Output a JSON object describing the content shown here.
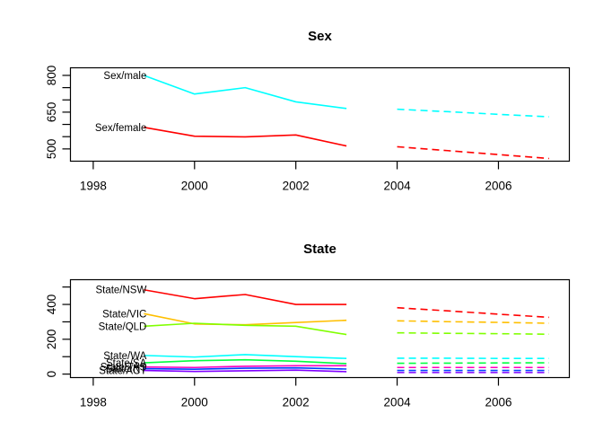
{
  "figure": {
    "background": "#FFFFFF",
    "axis_color": "#000000",
    "text_color": "#000000"
  },
  "chart_data": [
    {
      "type": "line",
      "title": "Sex",
      "x_axis": {
        "min": 1997.55,
        "max": 2007.4,
        "ticks": [
          1998,
          2000,
          2002,
          2004,
          2006
        ]
      },
      "y_axis": {
        "min": 450,
        "max": 831,
        "ticks": [
          500,
          550,
          600,
          650,
          700,
          750,
          800
        ],
        "labeled_ticks": [
          500,
          650,
          800
        ]
      },
      "years_solid": [
        1999,
        2000,
        2001,
        2002,
        2003
      ],
      "years_dashed": [
        2004,
        2005,
        2006,
        2007
      ],
      "legend_position": "inline-labels",
      "grid": false,
      "series": [
        {
          "label": "Sex/male",
          "color": "#00FFFF",
          "solid": [
            800,
            724,
            750,
            692,
            665
          ],
          "dashed": [
            662,
            652,
            641,
            631
          ]
        },
        {
          "label": "Sex/female",
          "color": "#FF0000",
          "solid": [
            588,
            552,
            549,
            557,
            512
          ],
          "dashed": [
            509,
            493,
            477,
            461
          ]
        }
      ]
    },
    {
      "type": "line",
      "title": "State",
      "x_axis": {
        "min": 1997.55,
        "max": 2007.4,
        "ticks": [
          1998,
          2000,
          2002,
          2004,
          2006
        ]
      },
      "y_axis": {
        "min": -20,
        "max": 542,
        "ticks": [
          0,
          100,
          200,
          300,
          400,
          500
        ],
        "labeled_ticks": [
          0,
          200,
          400
        ]
      },
      "years_solid": [
        1999,
        2000,
        2001,
        2002,
        2003
      ],
      "years_dashed": [
        2004,
        2005,
        2006,
        2007
      ],
      "legend_position": "inline-labels",
      "grid": false,
      "series": [
        {
          "label": "State/NSW",
          "color": "#FF0000",
          "solid": [
            484,
            433,
            457,
            400,
            400
          ],
          "dashed": [
            381,
            363,
            344,
            326
          ]
        },
        {
          "label": "State/VIC",
          "color": "#FFBF00",
          "solid": [
            347,
            288,
            283,
            296,
            309
          ],
          "dashed": [
            306,
            301,
            297,
            292
          ]
        },
        {
          "label": "State/QLD",
          "color": "#80FF00",
          "solid": [
            275,
            292,
            280,
            275,
            227
          ],
          "dashed": [
            237,
            234,
            232,
            229
          ]
        },
        {
          "label": "State/SA",
          "color": "#00FF40",
          "solid": [
            65,
            77,
            82,
            74,
            60
          ],
          "dashed": [
            62,
            63,
            64,
            65
          ]
        },
        {
          "label": "State/WA",
          "color": "#00FFFF",
          "solid": [
            107,
            98,
            112,
            100,
            90
          ],
          "dashed": [
            91,
            91,
            90,
            90
          ]
        },
        {
          "label": "State/NT",
          "color": "#0040FF",
          "solid": [
            31,
            28,
            34,
            36,
            29
          ],
          "dashed": [
            21,
            21,
            21,
            21
          ]
        },
        {
          "label": "State/ACT",
          "color": "#8000FF",
          "solid": [
            21,
            15,
            19,
            23,
            14
          ],
          "dashed": [
            9,
            9,
            9,
            9
          ]
        },
        {
          "label": "State/TAS",
          "color": "#FF00BF",
          "solid": [
            41,
            38,
            45,
            48,
            48
          ],
          "dashed": [
            38,
            38,
            38,
            38
          ]
        }
      ]
    }
  ]
}
